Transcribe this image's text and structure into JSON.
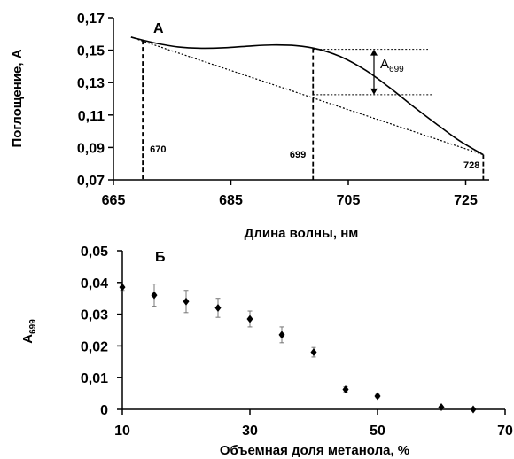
{
  "chart_data": [
    {
      "type": "line",
      "panel_label": "А",
      "xlabel": "Длина волны, нм",
      "ylabel": "Поглощение, А",
      "xlim": [
        665,
        729
      ],
      "ylim": [
        0.07,
        0.17
      ],
      "x_ticks": [
        "665",
        "685",
        "705",
        "725"
      ],
      "y_ticks": [
        "0,07",
        "0,09",
        "0,11",
        "0,13",
        "0,15",
        "0,17"
      ],
      "spectrum": {
        "x": [
          668,
          672,
          676,
          680,
          684,
          688,
          692,
          696,
          700,
          704,
          708,
          712,
          716,
          720,
          724,
          728
        ],
        "y": [
          0.158,
          0.1545,
          0.152,
          0.1512,
          0.1515,
          0.1525,
          0.1532,
          0.1528,
          0.1505,
          0.1455,
          0.1375,
          0.127,
          0.1155,
          0.1045,
          0.094,
          0.0855
        ]
      },
      "baseline": {
        "x": [
          668,
          728
        ],
        "y": [
          0.158,
          0.0855
        ]
      },
      "markers": [
        {
          "x": 670,
          "label": "670"
        },
        {
          "x": 699,
          "label": "699"
        },
        {
          "x": 728,
          "label": "728"
        }
      ],
      "annotation": {
        "label_main": "A",
        "label_sub": "699",
        "x": 699,
        "y_top": 0.1505,
        "y_bottom": 0.1225
      }
    },
    {
      "type": "scatter",
      "panel_label": "Б",
      "xlabel": "Объемная доля метанола, %",
      "ylabel_main": "A",
      "ylabel_sub": "699",
      "xlim": [
        10,
        70
      ],
      "ylim": [
        0,
        0.05
      ],
      "x_ticks": [
        "10",
        "30",
        "50",
        "70"
      ],
      "y_ticks": [
        "0",
        "0,01",
        "0,02",
        "0,03",
        "0,04",
        "0,05"
      ],
      "points": [
        {
          "x": 10,
          "y": 0.0385,
          "err": 0.001
        },
        {
          "x": 15,
          "y": 0.036,
          "err": 0.0035
        },
        {
          "x": 20,
          "y": 0.034,
          "err": 0.0035
        },
        {
          "x": 25,
          "y": 0.032,
          "err": 0.003
        },
        {
          "x": 30,
          "y": 0.0285,
          "err": 0.0025
        },
        {
          "x": 35,
          "y": 0.0235,
          "err": 0.0025
        },
        {
          "x": 40,
          "y": 0.018,
          "err": 0.0015
        },
        {
          "x": 45,
          "y": 0.0063,
          "err": 0.0008
        },
        {
          "x": 50,
          "y": 0.0042,
          "err": 0.0005
        },
        {
          "x": 60,
          "y": 0.0007,
          "err": 0.0003
        },
        {
          "x": 65,
          "y": 0.0,
          "err": 0.0002
        }
      ]
    }
  ]
}
